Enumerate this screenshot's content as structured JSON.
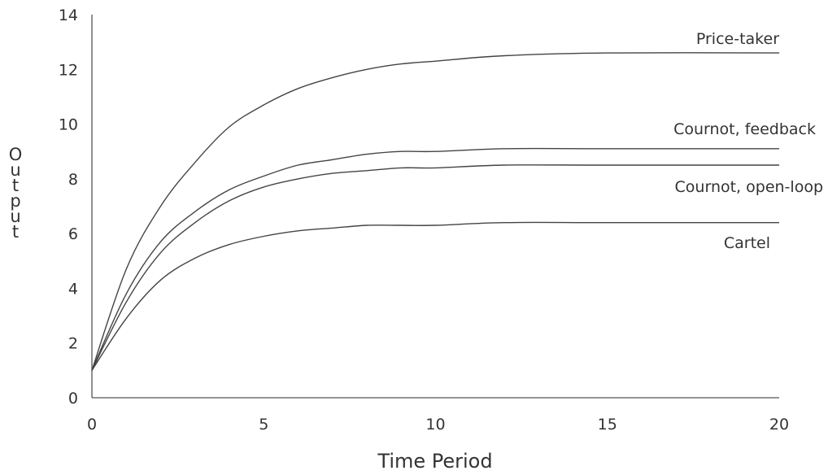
{
  "chart_data": {
    "type": "line",
    "title": "",
    "xlabel": "Time Period",
    "ylabel": "Output",
    "xlim": [
      0,
      20
    ],
    "ylim": [
      0,
      14
    ],
    "xticks": [
      0,
      5,
      10,
      15,
      20
    ],
    "yticks": [
      0,
      2,
      4,
      6,
      8,
      10,
      12,
      14
    ],
    "grid": false,
    "legend": "inline-right",
    "series": [
      {
        "name": "Price-taker",
        "x": [
          0,
          1,
          2,
          3,
          4,
          5,
          6,
          7,
          8,
          9,
          10,
          12,
          15,
          20
        ],
        "y": [
          1.0,
          4.7,
          7.0,
          8.6,
          9.9,
          10.7,
          11.3,
          11.7,
          12.0,
          12.2,
          12.3,
          12.5,
          12.6,
          12.6
        ]
      },
      {
        "name": "Cournot, feedback",
        "x": [
          0,
          1,
          2,
          3,
          4,
          5,
          6,
          7,
          8,
          9,
          10,
          12,
          15,
          20
        ],
        "y": [
          1.0,
          3.8,
          5.7,
          6.8,
          7.6,
          8.1,
          8.5,
          8.7,
          8.9,
          9.0,
          9.0,
          9.1,
          9.1,
          9.1
        ]
      },
      {
        "name": "Cournot, open-loop",
        "x": [
          0,
          1,
          2,
          3,
          4,
          5,
          6,
          7,
          8,
          9,
          10,
          12,
          15,
          20
        ],
        "y": [
          1.0,
          3.5,
          5.3,
          6.4,
          7.2,
          7.7,
          8.0,
          8.2,
          8.3,
          8.4,
          8.4,
          8.5,
          8.5,
          8.5
        ]
      },
      {
        "name": "Cartel",
        "x": [
          0,
          1,
          2,
          3,
          4,
          5,
          6,
          7,
          8,
          9,
          10,
          12,
          15,
          20
        ],
        "y": [
          1.0,
          2.9,
          4.3,
          5.1,
          5.6,
          5.9,
          6.1,
          6.2,
          6.3,
          6.3,
          6.3,
          6.4,
          6.4,
          6.4
        ]
      }
    ]
  }
}
